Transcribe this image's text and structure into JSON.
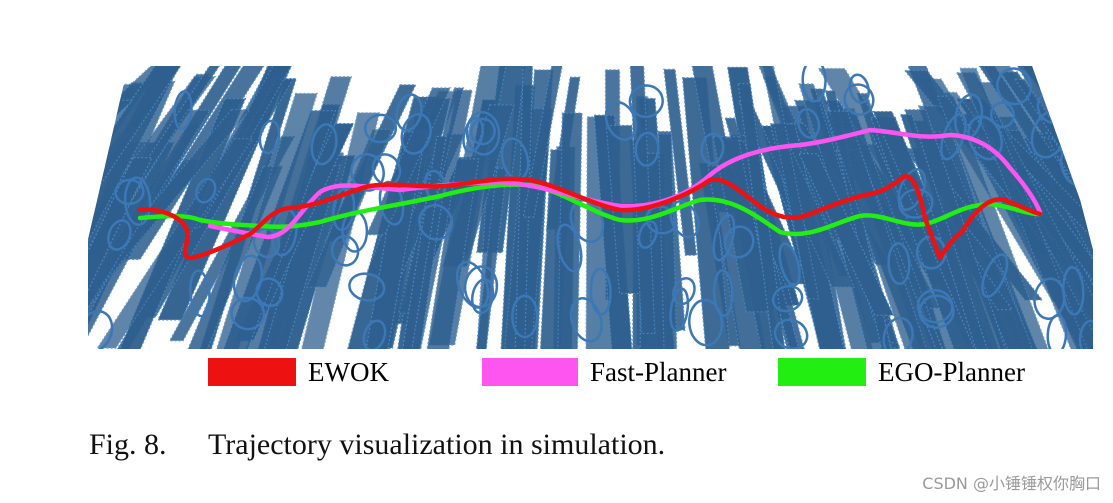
{
  "figure": {
    "colors": {
      "background": "#ffffff",
      "obstacle_fill": "#2e5f8e",
      "obstacle_edge": "#4a86c0",
      "ring": "#3b78b5"
    },
    "legend": [
      {
        "name": "EWOK",
        "color": "#ee1111"
      },
      {
        "name": "Fast-Planner",
        "color": "#ff55f0"
      },
      {
        "name": "EGO-Planner",
        "color": "#22ee11"
      }
    ],
    "caption": {
      "label": "Fig. 8.",
      "text": "Trajectory visualization in simulation."
    }
  },
  "watermark": "CSDN @小锤锤权你胸口"
}
